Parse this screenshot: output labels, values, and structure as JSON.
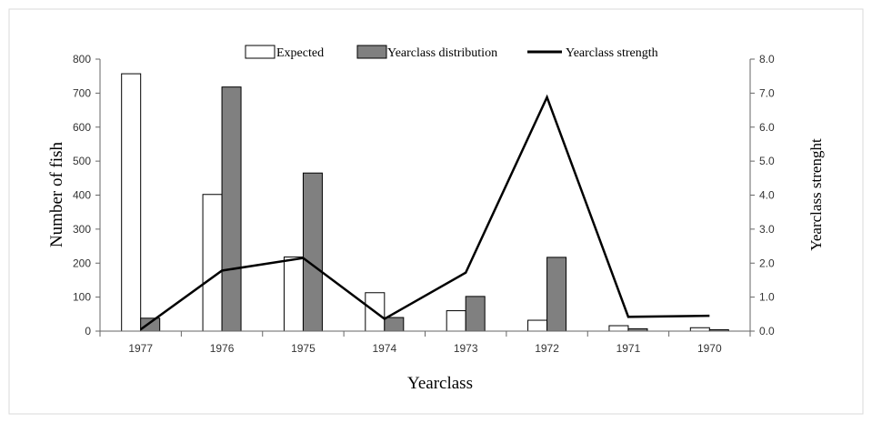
{
  "chart_data": {
    "type": "bar",
    "categories": [
      "1977",
      "1976",
      "1975",
      "1974",
      "1973",
      "1972",
      "1971",
      "1970"
    ],
    "series": [
      {
        "name": "Expected",
        "kind": "bar",
        "axis": "left",
        "color": "#ffffff",
        "values": [
          757,
          402,
          218,
          113,
          60,
          32,
          16,
          10
        ]
      },
      {
        "name": "Yearclass distribution",
        "kind": "bar",
        "axis": "left",
        "color": "#808080",
        "values": [
          38,
          718,
          465,
          40,
          102,
          217,
          7,
          4
        ]
      },
      {
        "name": "Yearclass strength",
        "kind": "line",
        "axis": "right",
        "color": "#000000",
        "values": [
          0.05,
          1.78,
          2.15,
          0.36,
          1.72,
          6.88,
          0.42,
          0.45
        ]
      }
    ],
    "xlabel": "Yearclass",
    "ylabel": "Number of fish",
    "y2label": "Yearclass strenght",
    "ylim": [
      0,
      800
    ],
    "y2lim": [
      0,
      8.0
    ],
    "yticks": [
      "0",
      "100",
      "200",
      "300",
      "400",
      "500",
      "600",
      "700",
      "800"
    ],
    "y2ticks": [
      "0.0",
      "1.0",
      "2.0",
      "3.0",
      "4.0",
      "5.0",
      "6.0",
      "7.0",
      "8.0"
    ],
    "legend_position": "top",
    "grid": false
  }
}
